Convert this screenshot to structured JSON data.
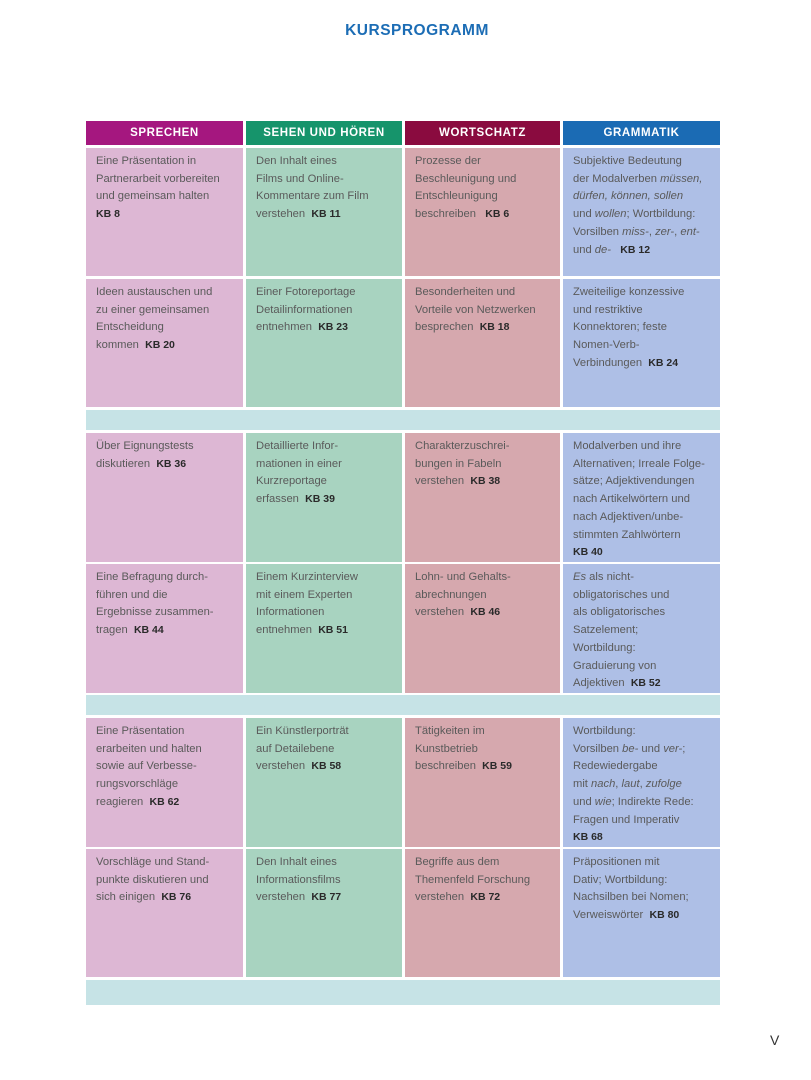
{
  "title": "KURSPROGRAMM",
  "page_number": "V",
  "colors": {
    "title": "#1c6db5",
    "headers": [
      "#a5177f",
      "#16946b",
      "#8a0b3f",
      "#1b6bb4"
    ],
    "cells": [
      "#ddb7d4",
      "#a8d3c0",
      "#d6a8ae",
      "#aebfe6"
    ],
    "spacer": "#c6e3e6"
  },
  "headers": [
    "SPRECHEN",
    "SEHEN UND HÖREN",
    "WORTSCHATZ",
    "GRAMMATIK"
  ],
  "blocks": [
    {
      "rows": [
        [
          [
            [
              {
                "t": "Eine Präsentation in"
              }
            ],
            [
              {
                "t": "Partnerarbeit vorbereiten"
              }
            ],
            [
              {
                "t": "und gemeinsam halten"
              }
            ],
            [
              {
                "t": "KB 8",
                "b": true
              }
            ]
          ],
          [
            [
              {
                "t": "Den Inhalt eines"
              }
            ],
            [
              {
                "t": "Films und Online-"
              }
            ],
            [
              {
                "t": "Kommentare zum Film"
              }
            ],
            [
              {
                "t": "verstehen  "
              },
              {
                "t": "KB 11",
                "b": true
              }
            ]
          ],
          [
            [
              {
                "t": "Prozesse der"
              }
            ],
            [
              {
                "t": "Beschleunigung und"
              }
            ],
            [
              {
                "t": "Entschleunigung"
              }
            ],
            [
              {
                "t": "beschreiben   "
              },
              {
                "t": "KB 6",
                "b": true
              }
            ]
          ],
          [
            [
              {
                "t": "Subjektive Bedeutung"
              }
            ],
            [
              {
                "t": "der Modalverben "
              },
              {
                "t": "müssen,",
                "i": true
              }
            ],
            [
              {
                "t": "dürfen, können, sollen",
                "i": true
              }
            ],
            [
              {
                "t": "und "
              },
              {
                "t": "wollen",
                "i": true
              },
              {
                "t": "; Wortbildung:"
              }
            ],
            [
              {
                "t": "Vorsilben "
              },
              {
                "t": "miss-",
                "i": true
              },
              {
                "t": ", "
              },
              {
                "t": "zer-",
                "i": true
              },
              {
                "t": ", "
              },
              {
                "t": "ent-",
                "i": true
              }
            ],
            [
              {
                "t": "und "
              },
              {
                "t": "de-",
                "i": true
              },
              {
                "t": "   "
              },
              {
                "t": "KB 12",
                "b": true
              }
            ]
          ]
        ],
        [
          [
            [
              {
                "t": "Ideen austauschen und"
              }
            ],
            [
              {
                "t": "zu einer gemeinsamen"
              }
            ],
            [
              {
                "t": "Entscheidung"
              }
            ],
            [
              {
                "t": "kommen  "
              },
              {
                "t": "KB 20",
                "b": true
              }
            ]
          ],
          [
            [
              {
                "t": "Einer Fotoreportage"
              }
            ],
            [
              {
                "t": "Detailinformationen"
              }
            ],
            [
              {
                "t": "entnehmen  "
              },
              {
                "t": "KB 23",
                "b": true
              }
            ]
          ],
          [
            [
              {
                "t": "Besonderheiten und"
              }
            ],
            [
              {
                "t": "Vorteile von Netzwerken"
              }
            ],
            [
              {
                "t": "besprechen  "
              },
              {
                "t": "KB 18",
                "b": true
              }
            ]
          ],
          [
            [
              {
                "t": "Zweiteilige konzessive"
              }
            ],
            [
              {
                "t": "und restriktive"
              }
            ],
            [
              {
                "t": "Konnektoren; feste"
              }
            ],
            [
              {
                "t": "Nomen-Verb-"
              }
            ],
            [
              {
                "t": "Verbindungen  "
              },
              {
                "t": "KB 24",
                "b": true
              }
            ]
          ]
        ]
      ]
    },
    {
      "rows": [
        [
          [
            [
              {
                "t": "Über Eignungstests"
              }
            ],
            [
              {
                "t": "diskutieren  "
              },
              {
                "t": "KB 36",
                "b": true
              }
            ]
          ],
          [
            [
              {
                "t": "Detaillierte Infor-"
              }
            ],
            [
              {
                "t": "mationen in einer"
              }
            ],
            [
              {
                "t": "Kurzreportage"
              }
            ],
            [
              {
                "t": "erfassen  "
              },
              {
                "t": "KB 39",
                "b": true
              }
            ]
          ],
          [
            [
              {
                "t": "Charakterzuschrei-"
              }
            ],
            [
              {
                "t": "bungen in Fabeln"
              }
            ],
            [
              {
                "t": "verstehen  "
              },
              {
                "t": "KB 38",
                "b": true
              }
            ]
          ],
          [
            [
              {
                "t": "Modalverben und ihre"
              }
            ],
            [
              {
                "t": "Alternativen; Irreale Folge-"
              }
            ],
            [
              {
                "t": "sätze; Adjektivendungen"
              }
            ],
            [
              {
                "t": "nach Artikelwörtern und"
              }
            ],
            [
              {
                "t": "nach Adjektiven/unbe-"
              }
            ],
            [
              {
                "t": "stimmten Zahlwörtern"
              }
            ],
            [
              {
                "t": "KB 40",
                "b": true
              }
            ]
          ]
        ],
        [
          [
            [
              {
                "t": "Eine Befragung durch-"
              }
            ],
            [
              {
                "t": "führen und die"
              }
            ],
            [
              {
                "t": "Ergebnisse zusammen-"
              }
            ],
            [
              {
                "t": "tragen  "
              },
              {
                "t": "KB 44",
                "b": true
              }
            ]
          ],
          [
            [
              {
                "t": "Einem Kurzinterview"
              }
            ],
            [
              {
                "t": "mit einem Experten"
              }
            ],
            [
              {
                "t": "Informationen"
              }
            ],
            [
              {
                "t": "entnehmen  "
              },
              {
                "t": "KB 51",
                "b": true
              }
            ]
          ],
          [
            [
              {
                "t": "Lohn- und Gehalts-"
              }
            ],
            [
              {
                "t": "abrechnungen"
              }
            ],
            [
              {
                "t": "verstehen  "
              },
              {
                "t": "KB 46",
                "b": true
              }
            ]
          ],
          [
            [
              {
                "t": "Es",
                "i": true
              },
              {
                "t": " als nicht-"
              }
            ],
            [
              {
                "t": "obligatorisches und"
              }
            ],
            [
              {
                "t": "als obligatorisches"
              }
            ],
            [
              {
                "t": "Satzelement;"
              }
            ],
            [
              {
                "t": "Wortbildung:"
              }
            ],
            [
              {
                "t": "Graduierung von"
              }
            ],
            [
              {
                "t": "Adjektiven  "
              },
              {
                "t": "KB 52",
                "b": true
              }
            ]
          ]
        ]
      ]
    },
    {
      "rows": [
        [
          [
            [
              {
                "t": "Eine Präsentation"
              }
            ],
            [
              {
                "t": "erarbeiten und halten"
              }
            ],
            [
              {
                "t": "sowie auf Verbesse-"
              }
            ],
            [
              {
                "t": "rungsvorschläge"
              }
            ],
            [
              {
                "t": "reagieren  "
              },
              {
                "t": "KB 62",
                "b": true
              }
            ]
          ],
          [
            [
              {
                "t": "Ein Künstlerporträt"
              }
            ],
            [
              {
                "t": "auf Detailebene"
              }
            ],
            [
              {
                "t": "verstehen  "
              },
              {
                "t": "KB 58",
                "b": true
              }
            ]
          ],
          [
            [
              {
                "t": "Tätigkeiten im"
              }
            ],
            [
              {
                "t": "Kunstbetrieb"
              }
            ],
            [
              {
                "t": "beschreiben  "
              },
              {
                "t": "KB 59",
                "b": true
              }
            ]
          ],
          [
            [
              {
                "t": "Wortbildung:"
              }
            ],
            [
              {
                "t": "Vorsilben "
              },
              {
                "t": "be-",
                "i": true
              },
              {
                "t": " und "
              },
              {
                "t": "ver-",
                "i": true
              },
              {
                "t": ";"
              }
            ],
            [
              {
                "t": "Redewiedergabe"
              }
            ],
            [
              {
                "t": "mit "
              },
              {
                "t": "nach",
                "i": true
              },
              {
                "t": ", "
              },
              {
                "t": "laut",
                "i": true
              },
              {
                "t": ", "
              },
              {
                "t": "zufolge",
                "i": true
              }
            ],
            [
              {
                "t": "und "
              },
              {
                "t": "wie",
                "i": true
              },
              {
                "t": "; Indirekte Rede:"
              }
            ],
            [
              {
                "t": "Fragen und Imperativ"
              }
            ],
            [
              {
                "t": "KB 68",
                "b": true
              }
            ]
          ]
        ],
        [
          [
            [
              {
                "t": "Vorschläge und Stand-"
              }
            ],
            [
              {
                "t": "punkte diskutieren und"
              }
            ],
            [
              {
                "t": "sich einigen  "
              },
              {
                "t": "KB 76",
                "b": true
              }
            ]
          ],
          [
            [
              {
                "t": "Den Inhalt eines"
              }
            ],
            [
              {
                "t": "Informationsfilms"
              }
            ],
            [
              {
                "t": "verstehen  "
              },
              {
                "t": "KB 77",
                "b": true
              }
            ]
          ],
          [
            [
              {
                "t": "Begriffe aus dem"
              }
            ],
            [
              {
                "t": "Themenfeld Forschung"
              }
            ],
            [
              {
                "t": "verstehen  "
              },
              {
                "t": "KB 72",
                "b": true
              }
            ]
          ],
          [
            [
              {
                "t": "Präpositionen mit"
              }
            ],
            [
              {
                "t": "Dativ; Wortbildung:"
              }
            ],
            [
              {
                "t": "Nachsilben bei Nomen;"
              }
            ],
            [
              {
                "t": "Verweiswörter  "
              },
              {
                "t": "KB 80",
                "b": true
              }
            ]
          ]
        ]
      ]
    }
  ]
}
